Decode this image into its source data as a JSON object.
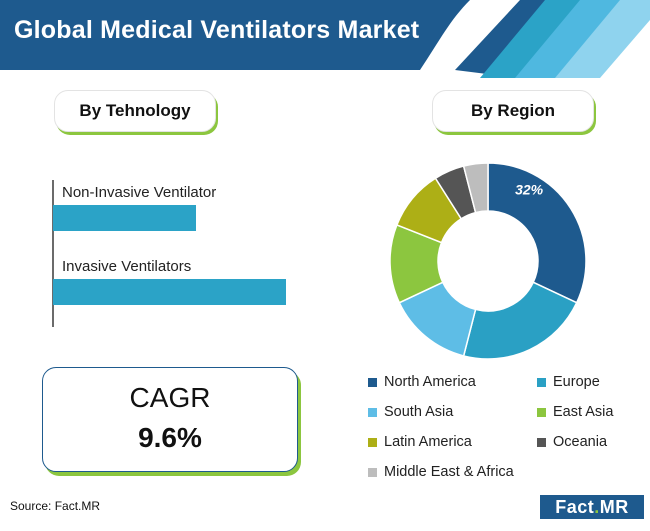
{
  "title": "Global Medical Ventilators Market",
  "colors": {
    "header": "#1e5a8e",
    "accent_green": "#8cc63f",
    "bar": "#2ba3c7"
  },
  "tech_panel": {
    "heading": "By Tehnology",
    "chart_data": {
      "type": "bar",
      "orientation": "horizontal",
      "categories": [
        "Non-Invasive Ventilator",
        "Invasive Ventilators"
      ],
      "values": [
        38,
        62
      ],
      "xlim": [
        0,
        100
      ],
      "title": "",
      "xlabel": "",
      "ylabel": ""
    }
  },
  "region_panel": {
    "heading": "By Region",
    "chart_data": {
      "type": "pie",
      "donut": true,
      "categories": [
        "North America",
        "Europe",
        "South Asia",
        "East Asia",
        "Latin America",
        "Oceania",
        "Middle East & Africa"
      ],
      "values": [
        32,
        22,
        14,
        13,
        10,
        5,
        4
      ],
      "colors": [
        "#1e5a8e",
        "#2aa0c4",
        "#5ebde6",
        "#8cc63f",
        "#adaf16",
        "#555555",
        "#bdbdbd"
      ],
      "data_labels": [
        "32%",
        "",
        "",
        "",
        "",
        "",
        ""
      ],
      "legend_position": "bottom"
    }
  },
  "cagr": {
    "label": "CAGR",
    "value": "9.6%"
  },
  "footer": {
    "source": "Source: Fact.MR",
    "logo_main": "Fact",
    "logo_dot": ".",
    "logo_suffix": "MR"
  }
}
